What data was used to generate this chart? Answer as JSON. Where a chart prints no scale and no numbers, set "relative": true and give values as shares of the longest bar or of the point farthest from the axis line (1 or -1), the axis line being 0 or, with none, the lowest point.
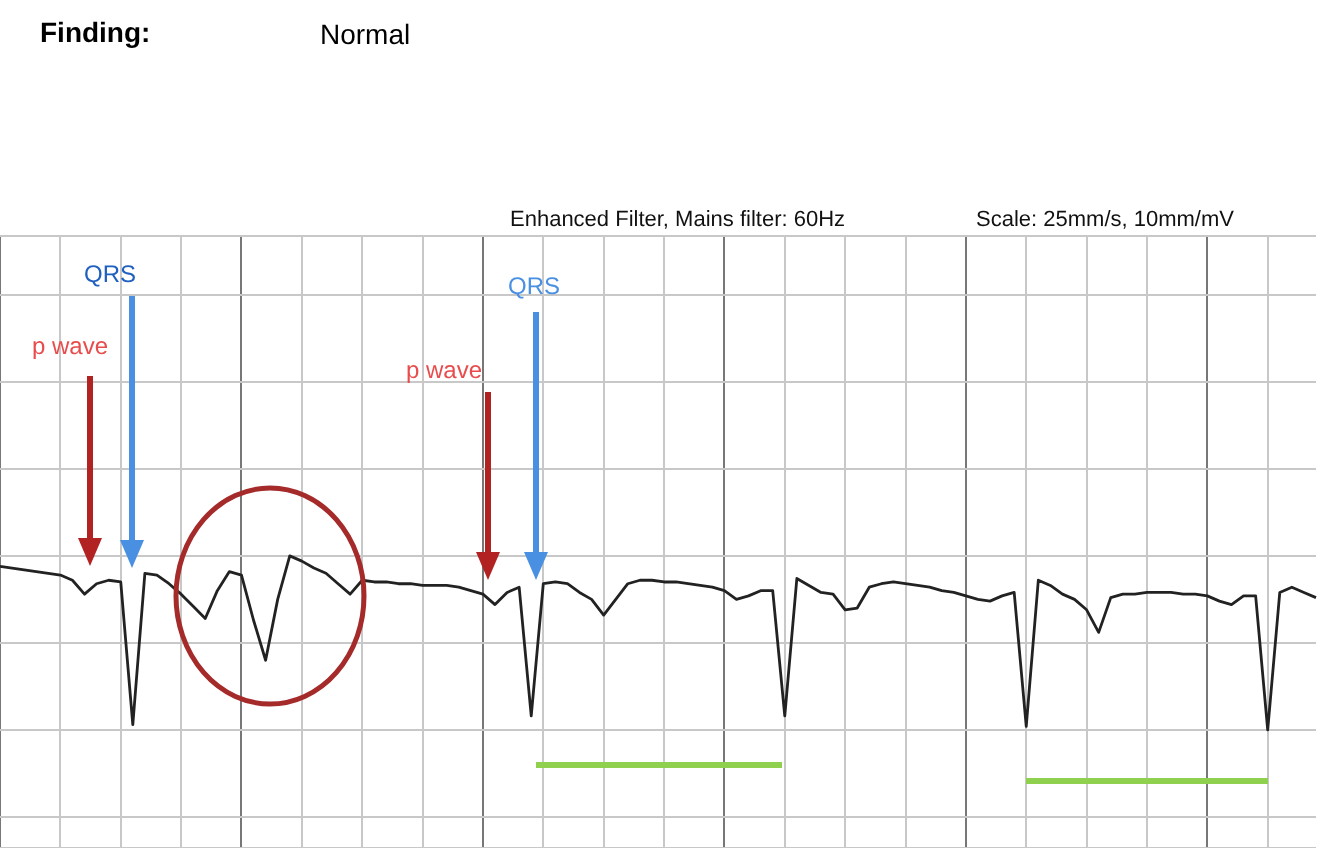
{
  "chart_data": {
    "type": "line",
    "relative": true,
    "title": "Finding:",
    "subtitle": "Normal",
    "annotations": [
      "Enhanced Filter, Mains filter: 60Hz",
      "Scale: 25mm/s, 10mm/mV",
      "p wave",
      "QRS",
      "p wave",
      "QRS"
    ],
    "categories": [
      null,
      null,
      null,
      null,
      null,
      null,
      null,
      null,
      null,
      null,
      null,
      null,
      null,
      null,
      null,
      null,
      null,
      null,
      null,
      null,
      null,
      null,
      null,
      null,
      null,
      null,
      null,
      null,
      null,
      null,
      null,
      null,
      null,
      null,
      null,
      null,
      null,
      null,
      null,
      null,
      null,
      null,
      null,
      null,
      null,
      null,
      null,
      null,
      null,
      null,
      null,
      null,
      null,
      null,
      null,
      null,
      null,
      null,
      null,
      null,
      null,
      null,
      null,
      null,
      null,
      null,
      null,
      null,
      null,
      null,
      null,
      null,
      null,
      null,
      null,
      null,
      null,
      null,
      null,
      null,
      null,
      null,
      null,
      null,
      null,
      null,
      null,
      null,
      null,
      null,
      null,
      null,
      null,
      null,
      null,
      null,
      null,
      null,
      null,
      null,
      null,
      null,
      null,
      null,
      null,
      null,
      null,
      null,
      null,
      null
    ],
    "series": [
      {
        "color": "#222222",
        "values": [
          0.94,
          0.93,
          0.92,
          0.91,
          0.9,
          0.89,
          0.86,
          0.78,
          0.84,
          0.86,
          0.85,
          0.03,
          0.9,
          0.89,
          0.84,
          0.78,
          0.71,
          0.64,
          0.8,
          0.91,
          0.89,
          0.63,
          0.4,
          0.75,
          1.0,
          0.97,
          0.93,
          0.9,
          0.84,
          0.78,
          0.86,
          0.85,
          0.85,
          0.84,
          0.84,
          0.83,
          0.83,
          0.83,
          0.82,
          0.8,
          0.78,
          0.72,
          0.79,
          0.82,
          0.08,
          0.84,
          0.85,
          0.84,
          0.79,
          0.75,
          0.66,
          0.75,
          0.84,
          0.86,
          0.86,
          0.85,
          0.85,
          0.84,
          0.83,
          0.82,
          0.8,
          0.75,
          0.77,
          0.8,
          0.8,
          0.08,
          0.87,
          0.83,
          0.79,
          0.78,
          0.69,
          0.7,
          0.82,
          0.84,
          0.85,
          0.84,
          0.83,
          0.82,
          0.8,
          0.79,
          0.77,
          0.75,
          0.74,
          0.77,
          0.79,
          0.02,
          0.86,
          0.83,
          0.78,
          0.75,
          0.69,
          0.56,
          0.76,
          0.78,
          0.78,
          0.79,
          0.79,
          0.79,
          0.78,
          0.78,
          0.77,
          0.74,
          0.72,
          0.77,
          0.77,
          0.0,
          0.79,
          0.82,
          0.79,
          0.76
        ]
      }
    ],
    "grid": true,
    "marker": "none",
    "line_style": "solid"
  }
}
